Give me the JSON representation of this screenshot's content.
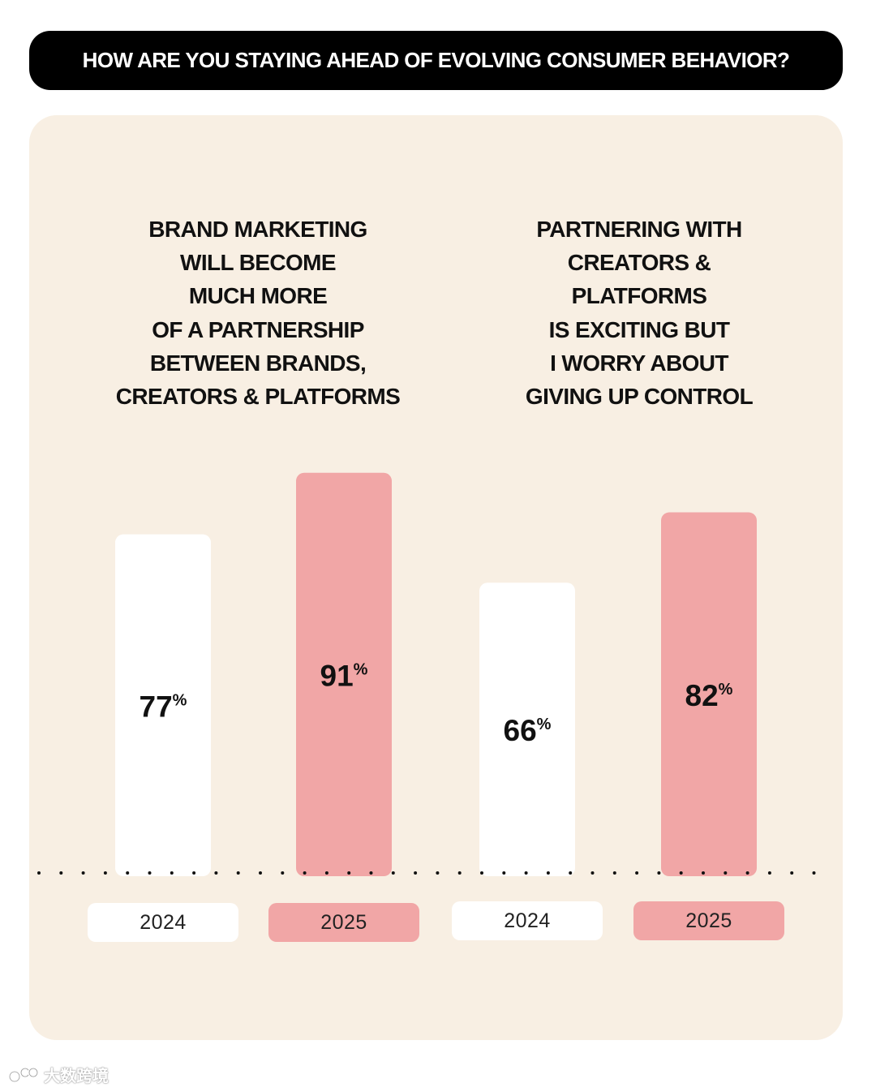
{
  "header": {
    "title": "HOW ARE YOU STAYING AHEAD OF EVOLVING CONSUMER BEHAVIOR?"
  },
  "groups": [
    {
      "title": "BRAND MARKETING\nWILL BECOME\nMUCH MORE\nOF A PARTNERSHIP\nBETWEEN BRANDS,\nCREATORS & PLATFORMS"
    },
    {
      "title": "PARTNERING WITH\nCREATORS &\nPLATFORMS\nIS EXCITING BUT\nI WORRY ABOUT\nGIVING UP CONTROL"
    }
  ],
  "years": [
    "2024",
    "2025",
    "2024",
    "2025"
  ],
  "watermark": {
    "text": "大数跨境"
  },
  "colors": {
    "panel_bg": "#f8efe3",
    "bar_2024": "#ffffff",
    "bar_2025": "#f1a6a6",
    "header_bg": "#000000"
  },
  "chart_data": {
    "type": "bar",
    "title": "HOW ARE YOU STAYING AHEAD OF EVOLVING CONSUMER BEHAVIOR?",
    "categories": [
      "BRAND MARKETING WILL BECOME MUCH MORE OF A PARTNERSHIP BETWEEN BRANDS, CREATORS & PLATFORMS",
      "PARTNERING WITH CREATORS & PLATFORMS IS EXCITING BUT I WORRY ABOUT GIVING UP CONTROL"
    ],
    "series": [
      {
        "name": "2024",
        "values": [
          77,
          66
        ],
        "color": "#ffffff"
      },
      {
        "name": "2025",
        "values": [
          91,
          82
        ],
        "color": "#f1a6a6"
      }
    ],
    "unit": "%",
    "xlabel": "",
    "ylabel": "",
    "ylim": [
      0,
      100
    ],
    "grid": false
  }
}
